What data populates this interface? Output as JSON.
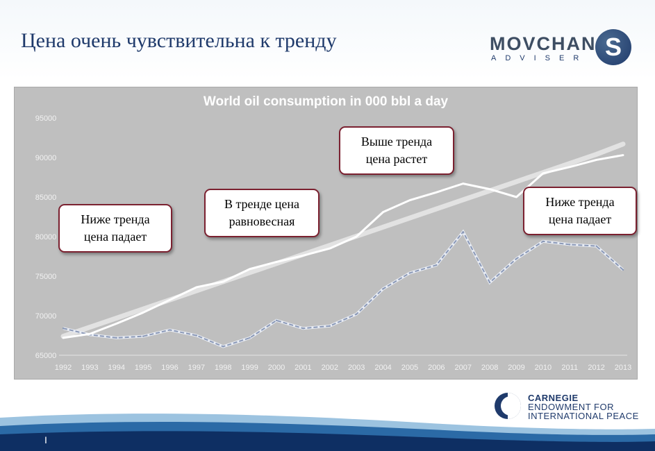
{
  "slide": {
    "title": "Цена очень чувствительна к тренду",
    "page_marker": "I"
  },
  "logo": {
    "name": "MOVCHAN",
    "sub": "ADVISER",
    "mark": "S"
  },
  "carnegie": {
    "line1": "CARNEGIE",
    "line2": "ENDOWMENT FOR",
    "line3": "INTERNATIONAL PEACE"
  },
  "callouts": [
    {
      "text": "Ниже тренда\nцена падает"
    },
    {
      "text": "В тренде цена\nравновесная"
    },
    {
      "text": "Выше тренда\nцена растет"
    },
    {
      "text": "Ниже тренда\nцена падает"
    }
  ],
  "colors": {
    "title": "#1f3a6b",
    "plot_bg": "#bfbfbf",
    "consumption_line": "#ffffff",
    "trend_line": "#e2e2e2",
    "price_line": "#8a98b6",
    "callout_border": "#7b2130"
  },
  "chart_data": {
    "type": "line",
    "title": "World oil consumption in 000 bbl a day",
    "xlabel": "",
    "ylabel": "",
    "categories": [
      "1992",
      "1993",
      "1994",
      "1995",
      "1996",
      "1997",
      "1998",
      "1999",
      "2000",
      "2001",
      "2002",
      "2003",
      "2004",
      "2005",
      "2006",
      "2007",
      "2008",
      "2009",
      "2010",
      "2011",
      "2012",
      "2013"
    ],
    "ylim": [
      65000,
      95000
    ],
    "yticks": [
      "65000",
      "70000",
      "75000",
      "80000",
      "85000",
      "90000",
      "95000"
    ],
    "grid": false,
    "legend": "none",
    "series": [
      {
        "key": "consumption",
        "values": [
          67200,
          67700,
          69000,
          70400,
          72000,
          73600,
          74300,
          75900,
          76800,
          77600,
          78500,
          80000,
          83100,
          84600,
          85600,
          86700,
          86000,
          85000,
          88000,
          88800,
          89700,
          90300
        ]
      },
      {
        "key": "trend",
        "values": [
          67400,
          68550,
          69700,
          70850,
          72000,
          73150,
          74300,
          75450,
          76600,
          77750,
          78900,
          80050,
          81200,
          82350,
          83500,
          84650,
          85800,
          86950,
          88100,
          89250,
          90400,
          91700
        ]
      },
      {
        "key": "scaled_price",
        "values": [
          68400,
          67600,
          67200,
          67400,
          68200,
          67500,
          66100,
          67200,
          69400,
          68400,
          68700,
          70200,
          73400,
          75400,
          76400,
          80600,
          74200,
          77200,
          79400,
          79000,
          78800,
          75800
        ]
      }
    ]
  }
}
